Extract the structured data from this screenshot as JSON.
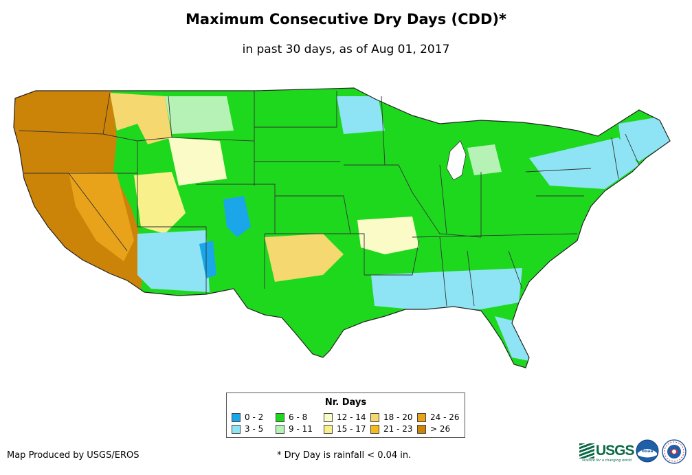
{
  "header": {
    "title": "Maximum Consecutive Dry Days (CDD)*",
    "subtitle": "in past 30 days, as of Aug 01, 2017"
  },
  "legend": {
    "title": "Nr. Days",
    "items": [
      {
        "label": "0 - 2",
        "color": "#1aa6e8"
      },
      {
        "label": "3 - 5",
        "color": "#8ee4f5"
      },
      {
        "label": "6 - 8",
        "color": "#1ed81e"
      },
      {
        "label": "9 - 11",
        "color": "#b6f2b6"
      },
      {
        "label": "12 - 14",
        "color": "#fbfbc8"
      },
      {
        "label": "15 - 17",
        "color": "#f8f08a"
      },
      {
        "label": "18 - 20",
        "color": "#f5d870"
      },
      {
        "label": "21 - 23",
        "color": "#f5bb18"
      },
      {
        "label": "24 - 26",
        "color": "#e8a31a"
      },
      {
        "label": "> 26",
        "color": "#cc8408"
      }
    ]
  },
  "footer": {
    "credit": "Map Produced by USGS/EROS",
    "note": "* Dry Day is rainfall < 0.04 in."
  },
  "logos": {
    "usgs_text": "USGS",
    "usgs_tagline": "science for a changing world",
    "noaa_text": "noaa"
  }
}
